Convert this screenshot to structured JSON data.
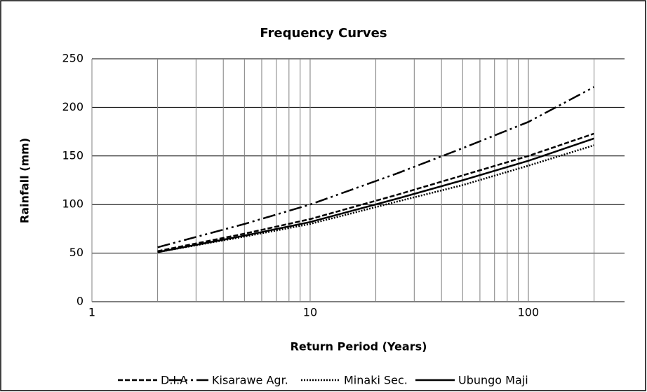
{
  "chart_data": {
    "type": "line",
    "title": "Frequency Curves",
    "x_label": "Return Period (Years)",
    "y_label": "Rainfall (mm)",
    "x": [
      2,
      5,
      10,
      25,
      50,
      100,
      200
    ],
    "series": [
      {
        "name": "D.I.A",
        "color": "#000000",
        "dash": "dash",
        "values": [
          52,
          70,
          85,
          110,
          130,
          150,
          173
        ]
      },
      {
        "name": "Kisarawe Agr.",
        "color": "#000000",
        "dash": "long-dash-dot-dot",
        "values": [
          56,
          80,
          100,
          132,
          158,
          185,
          221
        ]
      },
      {
        "name": "Minaki Sec.",
        "color": "#000000",
        "dash": "dot",
        "values": [
          51,
          67,
          80,
          103,
          120,
          140,
          161
        ]
      },
      {
        "name": "Ubungo Maji",
        "color": "#000000",
        "dash": "solid",
        "values": [
          51,
          68,
          82,
          106,
          125,
          145,
          168
        ]
      }
    ],
    "x_log": true,
    "xlim": [
      1,
      276
    ],
    "xticks": [
      1,
      10,
      100
    ],
    "xgrid": [
      2,
      3,
      4,
      5,
      6,
      7,
      8,
      9,
      10,
      20,
      30,
      40,
      50,
      60,
      70,
      80,
      90,
      100,
      200
    ],
    "ylim": [
      0,
      250
    ],
    "yticks": [
      0,
      50,
      100,
      150,
      200,
      250
    ],
    "grid": true,
    "legend": "bottom"
  }
}
